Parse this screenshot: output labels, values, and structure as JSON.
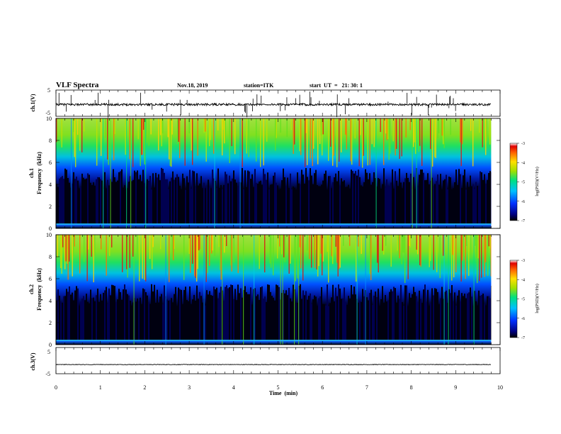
{
  "header": {
    "title": "VLF Spectra",
    "date": "Nov.18, 2019",
    "station": "station=ITK",
    "start_ut": "start  UT  =   21: 30: 1"
  },
  "panels": {
    "ch1_wave": {
      "ylabel": "ch.1(V)",
      "ticks": [
        "5",
        "-5"
      ]
    },
    "ch1_spec": {
      "ylabel_line1": "ch.1",
      "ylabel_line2": "Frequency  (kHz)",
      "ticks": [
        "0",
        "2",
        "4",
        "6",
        "8",
        "10"
      ]
    },
    "ch2_spec": {
      "ylabel_line1": "ch.2",
      "ylabel_line2": "Frequency  (kHz)",
      "ticks": [
        "0",
        "2",
        "4",
        "6",
        "8",
        "10"
      ]
    },
    "ch3_wave": {
      "ylabel": "ch.3(V)",
      "ticks": [
        "5",
        "-5"
      ]
    }
  },
  "colorbars": [
    {
      "label": "log(PSD)(V²/Hz)",
      "ticks": [
        "-3",
        "-4",
        "-5",
        "-6",
        "-7"
      ]
    },
    {
      "label": "log(PSD)(V²/Hz)",
      "ticks": [
        "-3",
        "-4",
        "-5",
        "-6",
        "-7"
      ]
    }
  ],
  "xaxis": {
    "label": "Time  (min)",
    "ticks": [
      "0",
      "1",
      "2",
      "3",
      "4",
      "5",
      "6",
      "7",
      "8",
      "9",
      "10"
    ]
  },
  "colors": {
    "spectrogram_low": "#000010",
    "spectrogram_high": "#d01010"
  },
  "chart_data": [
    {
      "type": "line",
      "xlabel": "",
      "ylabel": "ch.1(V)",
      "xlim": [
        0,
        10
      ],
      "ylim": [
        -5,
        5
      ],
      "series": [
        {
          "description_level": "baseline near -0.5 V with impulsive sferics spikes",
          "baseline": -0.5
        }
      ],
      "data_end_min": 9.8
    },
    {
      "type": "heatmap",
      "xlabel": "",
      "ylabel": "Frequency  (kHz)",
      "xlim": [
        0,
        10
      ],
      "ylim": [
        0,
        10
      ],
      "colorbar": {
        "label": "log(PSD)(V²/Hz)",
        "range": [
          -7,
          -3
        ]
      },
      "data_end_min": 9.8
    },
    {
      "type": "heatmap",
      "xlabel": "",
      "ylabel": "Frequency  (kHz)",
      "xlim": [
        0,
        10
      ],
      "ylim": [
        0,
        10
      ],
      "colorbar": {
        "label": "log(PSD)(V²/Hz)",
        "range": [
          -7,
          -3
        ]
      },
      "data_end_min": 9.8
    },
    {
      "type": "line",
      "xlabel": "Time  (min)",
      "ylabel": "ch.3(V)",
      "xlim": [
        0,
        10
      ],
      "ylim": [
        -5,
        5
      ],
      "series": [
        {
          "baseline": -1.5
        }
      ],
      "data_end_min": 9.8
    }
  ]
}
